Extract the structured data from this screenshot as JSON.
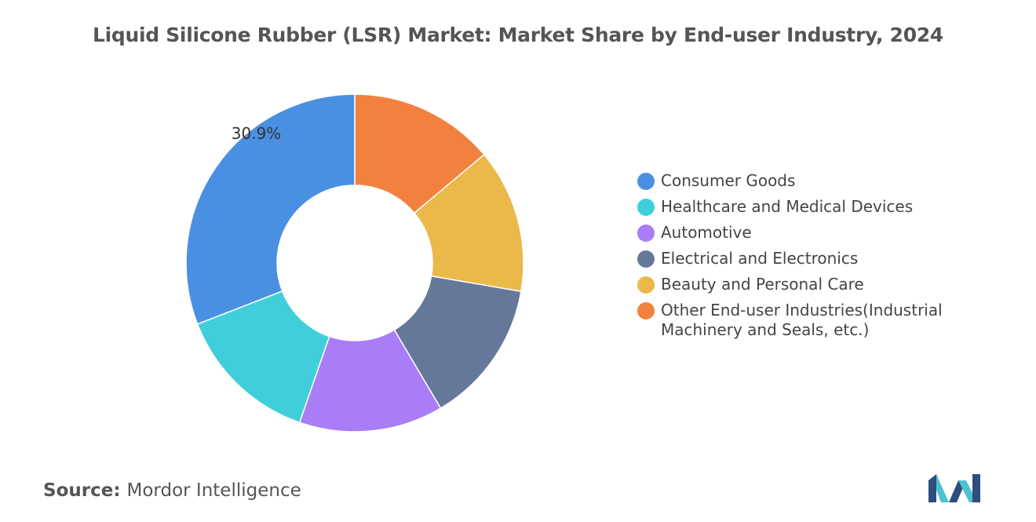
{
  "chart_data": {
    "type": "pie",
    "title": "Liquid Silicone Rubber (LSR) Market: Market Share by End-user Industry, 2024",
    "categories": [
      "Consumer Goods",
      "Healthcare and Medical Devices",
      "Automotive",
      "Electrical and Electronics",
      "Beauty and Personal Care",
      "Other End-user Industries(Industrial Machinery and Seals, etc.)"
    ],
    "values": [
      30.9,
      13.8,
      13.8,
      13.8,
      13.8,
      13.9
    ],
    "colors": [
      "#4A90E2",
      "#40CFDA",
      "#A97CF8",
      "#66789A",
      "#EBB84A",
      "#F2813F"
    ],
    "data_labels": [
      "30.9%",
      "",
      "",
      "",
      "",
      ""
    ],
    "hole": "donut",
    "legend_position": "right"
  },
  "source": {
    "label": "Source:",
    "value": "Mordor Intelligence"
  },
  "logo": {
    "icon": "mordor-intelligence-logo-icon",
    "colors": [
      "#2E4E7D",
      "#4CC1D1"
    ]
  }
}
